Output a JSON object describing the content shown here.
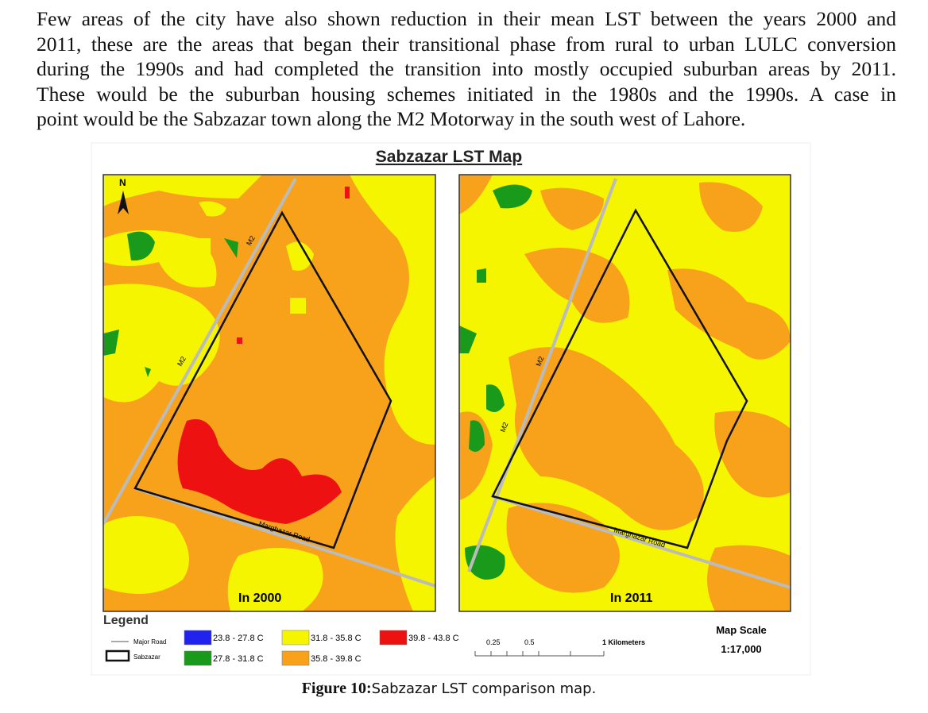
{
  "paragraph": {
    "lines": [
      "Few areas of the city have also shown reduction in their mean LST between the years 2000 and",
      "2011, these are the areas that began their transitional phase from rural to urban LULC conversion",
      "during the 1990s and had completed the transition into mostly occupied suburban areas by 2011.",
      "These would be the suburban housing schemes initiated in the 1980s and the 1990s. A case in",
      "point would be the Sabzazar town along the M2 Motorway in the south west of Lahore."
    ]
  },
  "figure": {
    "title": "Sabzazar LST Map",
    "north": "N",
    "panels": [
      {
        "label": "In 2000",
        "road1": "M2",
        "road2": "M2",
        "road3": "Marghazar Road"
      },
      {
        "label": "In 2011",
        "road1": "M2",
        "road2": "M2",
        "road3": "Marghazar Road"
      }
    ],
    "legend": {
      "title": "Legend",
      "major_road": "Major Road",
      "boundary": "Sabzazar",
      "classes": [
        {
          "label": "23.8 - 27.8 C",
          "color": "#2222ee"
        },
        {
          "label": "27.8 - 31.8 C",
          "color": "#1a9a1a"
        },
        {
          "label": "31.8 - 35.8 C",
          "color": "#f5f500"
        },
        {
          "label": "35.8 - 39.8 C",
          "color": "#f7a21a"
        },
        {
          "label": "39.8 - 43.8 C",
          "color": "#ee1111"
        }
      ]
    },
    "scale_bar": {
      "labels": [
        "0.25",
        "0.5",
        "1 Kilometers"
      ]
    },
    "map_scale": {
      "title": "Map Scale",
      "value": "1:17,000"
    }
  },
  "caption": {
    "number": "Figure 10:",
    "text": "Sabzazar LST comparison map."
  }
}
